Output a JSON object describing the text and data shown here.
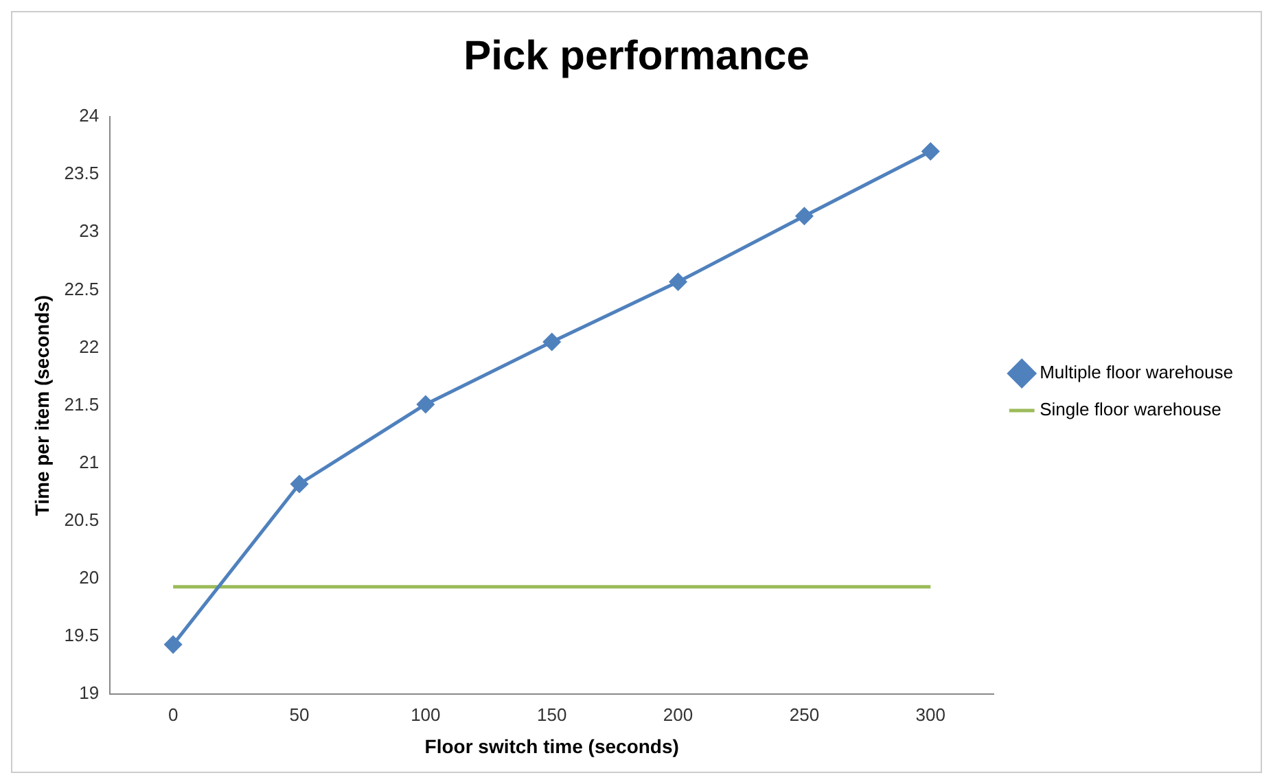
{
  "chart_data": {
    "type": "line",
    "title": "Pick performance",
    "xlabel": "Floor switch time (seconds)",
    "ylabel": "Time per item (seconds)",
    "categories": [
      "0",
      "50",
      "100",
      "150",
      "200",
      "250",
      "300"
    ],
    "series": [
      {
        "name": "Multiple floor warehouse",
        "color": "#4f81bd",
        "marker": "diamond",
        "values": [
          19.43,
          20.82,
          21.51,
          22.05,
          22.57,
          23.14,
          23.7
        ]
      },
      {
        "name": "Single floor warehouse",
        "color": "#9bbb59",
        "marker": "none",
        "values": [
          19.93,
          19.93,
          19.93,
          19.93,
          19.93,
          19.93,
          19.93
        ]
      }
    ],
    "ylim": [
      19,
      24
    ],
    "yticks": [
      19,
      19.5,
      20,
      20.5,
      21,
      21.5,
      22,
      22.5,
      23,
      23.5,
      24
    ],
    "grid": false,
    "legend": "right"
  }
}
